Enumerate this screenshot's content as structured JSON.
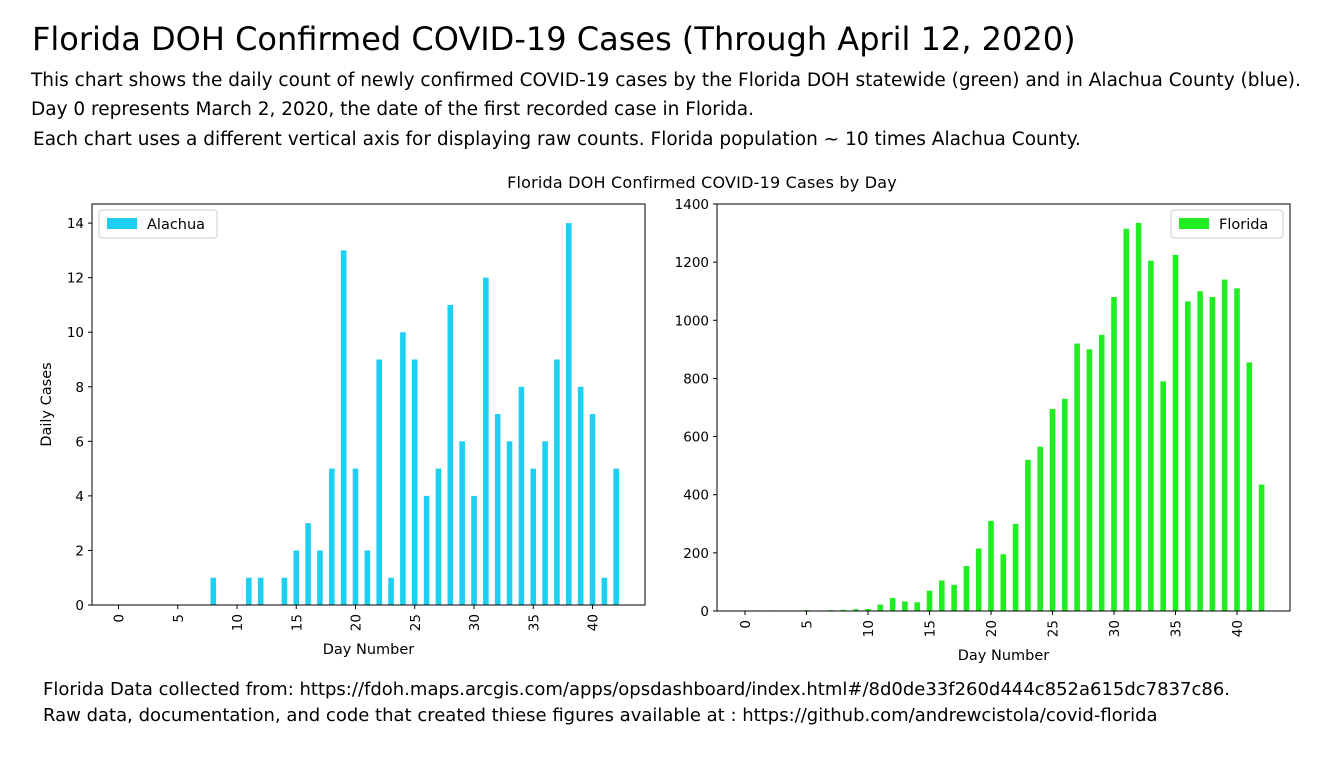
{
  "page": {
    "title": "Florida DOH Confirmed COVID-19 Cases (Through April 12, 2020)",
    "description_lines": [
      "This chart shows the daily count of newly confirmed COVID-19 cases by the Florida DOH statewide (green) and in Alachua County (blue).",
      "Day 0 represents March 2, 2020, the date of the first recorded case in Florida.",
      "Each chart uses a different vertical axis for displaying raw counts. Florida population ~ 10 times Alachua County."
    ],
    "footer_lines": [
      "Florida Data collected from:  https://fdoh.maps.arcgis.com/apps/opsdashboard/index.html#/8d0de33f260d444c852a615dc7837c86.",
      "Raw data, documentation, and code that created thiese figures available at : https://github.com/andrewcistola/covid-florida"
    ]
  },
  "chart_data": [
    {
      "type": "bar",
      "title": "Florida DOH Confirmed COVID-19 Cases by Day",
      "xlabel": "Day Number",
      "ylabel": "Daily Cases",
      "legend": "top-left",
      "grid": false,
      "ylim": [
        0,
        14.7
      ],
      "yticks": [
        0,
        2,
        4,
        6,
        8,
        10,
        12,
        14
      ],
      "xticks": [
        0,
        5,
        10,
        15,
        20,
        25,
        30,
        35,
        40
      ],
      "x": [
        0,
        1,
        2,
        3,
        4,
        5,
        6,
        7,
        8,
        9,
        10,
        11,
        12,
        13,
        14,
        15,
        16,
        17,
        18,
        19,
        20,
        21,
        22,
        23,
        24,
        25,
        26,
        27,
        28,
        29,
        30,
        31,
        32,
        33,
        34,
        35,
        36,
        37,
        38,
        39,
        40,
        41,
        42
      ],
      "series": [
        {
          "name": "Alachua",
          "color": "#1fcff2",
          "values": [
            0,
            0,
            0,
            0,
            0,
            0,
            0,
            0,
            1,
            0,
            0,
            1,
            1,
            0,
            1,
            2,
            3,
            2,
            5,
            13,
            5,
            2,
            9,
            1,
            10,
            9,
            4,
            5,
            11,
            6,
            4,
            12,
            7,
            6,
            8,
            5,
            6,
            9,
            14,
            8,
            7,
            1,
            5
          ]
        }
      ]
    },
    {
      "type": "bar",
      "title": "",
      "xlabel": "Day Number",
      "ylabel": "",
      "legend": "top-right",
      "grid": false,
      "ylim": [
        0,
        1400
      ],
      "yticks": [
        0,
        200,
        400,
        600,
        800,
        1000,
        1200,
        1400
      ],
      "xticks": [
        0,
        5,
        10,
        15,
        20,
        25,
        30,
        35,
        40
      ],
      "x": [
        0,
        1,
        2,
        3,
        4,
        5,
        6,
        7,
        8,
        9,
        10,
        11,
        12,
        13,
        14,
        15,
        16,
        17,
        18,
        19,
        20,
        21,
        22,
        23,
        24,
        25,
        26,
        27,
        28,
        29,
        30,
        31,
        32,
        33,
        34,
        35,
        36,
        37,
        38,
        39,
        40,
        41,
        42
      ],
      "series": [
        {
          "name": "Florida",
          "color": "#21ee21",
          "values": [
            2,
            2,
            2,
            0,
            0,
            3,
            0,
            3,
            4,
            6,
            7,
            22,
            45,
            33,
            30,
            70,
            105,
            90,
            155,
            215,
            310,
            195,
            300,
            520,
            565,
            695,
            730,
            920,
            900,
            950,
            1080,
            1315,
            1335,
            1205,
            790,
            1225,
            1065,
            1100,
            1080,
            1140,
            1110,
            855,
            435
          ]
        }
      ]
    }
  ]
}
